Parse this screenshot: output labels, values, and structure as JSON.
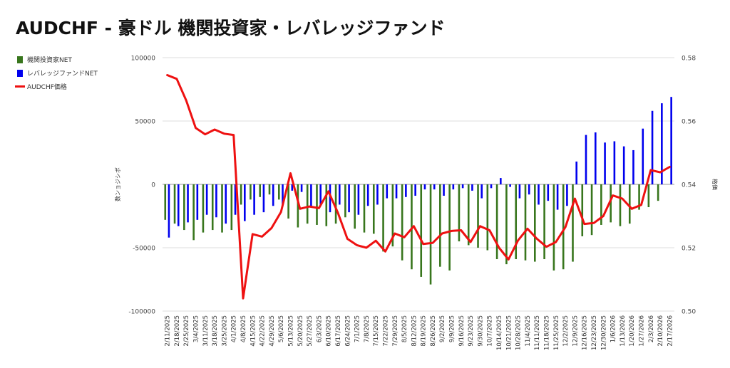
{
  "title": "AUDCHF - 豪ドル 機関投資家・レバレッジファンド",
  "legend": [
    {
      "label": "機関投資家NET",
      "color": "#38761d",
      "kind": "bar"
    },
    {
      "label": "レバレッジファンドNET",
      "color": "#0000ee",
      "kind": "bar"
    },
    {
      "label": "AUDCHF価格",
      "color": "#ee1111",
      "kind": "line"
    }
  ],
  "chart_data": {
    "type": "bar",
    "ylabel": "数ンョジシポ",
    "y2label": "格価",
    "ylim": [
      -100000,
      100000
    ],
    "y2lim": [
      0.5,
      0.58
    ],
    "yticks": [
      "100000",
      "50000",
      "0",
      "-50000",
      "-100000"
    ],
    "y2ticks": [
      "0.58",
      "0.56",
      "0.54",
      "0.52",
      "0.50"
    ],
    "categories": [
      "2/11/2025",
      "2/18/2025",
      "2/25/2025",
      "3/4/2025",
      "3/11/2025",
      "3/18/2025",
      "3/25/2025",
      "4/1/2025",
      "4/8/2025",
      "4/15/2025",
      "4/22/2025",
      "4/29/2025",
      "5/6/2025",
      "5/13/2025",
      "5/20/2025",
      "5/27/2025",
      "6/3/2025",
      "6/10/2025",
      "6/17/2025",
      "6/24/2025",
      "7/1/2025",
      "7/8/2025",
      "7/15/2025",
      "7/22/2025",
      "7/29/2025",
      "8/5/2025",
      "8/12/2025",
      "8/19/2025",
      "8/26/2025",
      "9/2/2025",
      "9/9/2025",
      "9/16/2025",
      "9/23/2025",
      "9/30/2025",
      "10/7/2025",
      "10/14/2025",
      "10/21/2025",
      "10/28/2025",
      "11/4/2025",
      "11/11/2025",
      "11/18/2025",
      "11/25/2025",
      "12/2/2025",
      "12/9/2025",
      "12/16/2025",
      "12/23/2025",
      "12/30/2025",
      "1/6/2026",
      "1/13/2026",
      "1/20/2026",
      "1/27/2026",
      "2/3/2026",
      "2/10/2026",
      "2/17/2026"
    ],
    "series": [
      {
        "name": "機関投資家NET",
        "color": "#38761d",
        "values": [
          -28000,
          -31000,
          -36000,
          -44000,
          -38000,
          -36000,
          -38000,
          -36000,
          -16000,
          -12000,
          -10000,
          -8000,
          -12000,
          -27000,
          -34000,
          -31000,
          -32000,
          -33000,
          -31000,
          -26000,
          -35000,
          -38000,
          -39000,
          -53000,
          -49000,
          -60000,
          -67000,
          -73000,
          -79000,
          -65000,
          -68000,
          -45000,
          -48000,
          -50000,
          -52000,
          -59000,
          -63000,
          -59000,
          -60000,
          -61000,
          -59000,
          -68000,
          -67000,
          -61000,
          -41000,
          -40000,
          -32000,
          -30000,
          -33000,
          -31000,
          -20000,
          -18000,
          -13000,
          0
        ]
      },
      {
        "name": "レバレッジファンドNET",
        "color": "#0000ee",
        "values": [
          -42000,
          -33000,
          -30000,
          -28000,
          -24000,
          -26000,
          -31000,
          -24000,
          -29000,
          -24000,
          -22000,
          -17000,
          -16000,
          -5000,
          -6000,
          -18000,
          -16000,
          -22000,
          -16000,
          -22000,
          -24000,
          -17000,
          -16000,
          -11000,
          -11000,
          -10000,
          -9000,
          -4000,
          -4000,
          -9000,
          -4000,
          -3000,
          -5000,
          -11000,
          -3000,
          5000,
          -2000,
          -11000,
          -8000,
          -16000,
          -13000,
          -20000,
          -17000,
          18000,
          39000,
          41000,
          33000,
          34000,
          30000,
          27000,
          44000,
          58000,
          64000,
          69000
        ]
      },
      {
        "name": "AUDCHF価格",
        "color": "#ee1111",
        "values": [
          0.5745,
          0.5733,
          0.5665,
          0.5578,
          0.5558,
          0.5573,
          0.556,
          0.5556,
          0.504,
          0.5243,
          0.5235,
          0.5262,
          0.5313,
          0.5435,
          0.5323,
          0.533,
          0.5325,
          0.5378,
          0.531,
          0.5228,
          0.5208,
          0.52,
          0.5222,
          0.5188,
          0.5245,
          0.5233,
          0.5268,
          0.5212,
          0.5215,
          0.5245,
          0.5253,
          0.5255,
          0.5218,
          0.5268,
          0.5255,
          0.52,
          0.5163,
          0.5223,
          0.526,
          0.5228,
          0.5203,
          0.5218,
          0.5265,
          0.5355,
          0.5275,
          0.5278,
          0.53,
          0.5365,
          0.5355,
          0.5323,
          0.5335,
          0.5445,
          0.5438,
          0.5455
        ]
      }
    ],
    "legend_position": "left",
    "grid": "horizontal"
  }
}
